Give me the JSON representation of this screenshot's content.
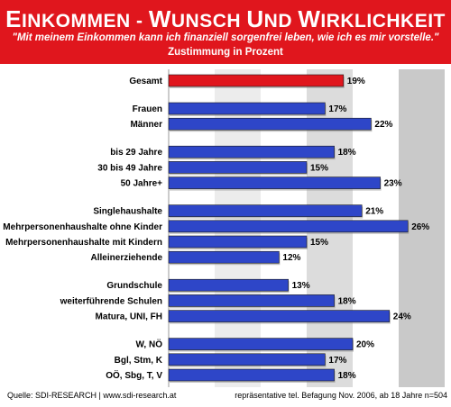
{
  "header": {
    "title": "Einkommen - Wunsch und Wirklichkeit",
    "subtitle": "\"Mit meinem Einkommen kann ich finanziell sorgenfrei leben, wie ich es mir vorstelle.\"",
    "unit_line": "Zustimmung in Prozent"
  },
  "footer": {
    "source": "Quelle: SDI-RESEARCH  |  www.sdi-research.at",
    "method": "repräsentative tel. Befagung Nov. 2006, ab 18 Jahre n=504"
  },
  "colors": {
    "header_bg": "#e0161d",
    "highlight_bar": "#e0161d",
    "bar": "#2e46c8"
  },
  "chart_data": {
    "type": "bar",
    "orientation": "horizontal",
    "xlim": [
      0,
      30
    ],
    "grid": "alternating vertical bands",
    "value_suffix": "%",
    "categories": [
      "Gesamt",
      "Frauen",
      "Männer",
      "bis 29 Jahre",
      "30 bis 49 Jahre",
      "50 Jahre+",
      "Singlehaushalte",
      "Mehrpersonenhaushalte ohne Kinder",
      "Mehrpersonenhaushalte mit Kindern",
      "Alleinerziehende",
      "Grundschule",
      "weiterführende Schulen",
      "Matura,  UNI, FH",
      "W, NÖ",
      "Bgl, Stm, K",
      "OÖ, Sbg, T, V"
    ],
    "values": [
      19,
      17,
      22,
      18,
      15,
      23,
      21,
      26,
      15,
      12,
      13,
      18,
      24,
      20,
      17,
      18
    ],
    "value_labels": [
      "19%",
      "17%",
      "22%",
      "18%",
      "15%",
      "23%",
      "21%",
      "26%",
      "15%",
      "12%",
      "13%",
      "18%",
      "24%",
      "20%",
      "17%",
      "18%"
    ],
    "groups": [
      1,
      2,
      3,
      4,
      3,
      3
    ],
    "highlight_index": 0
  }
}
